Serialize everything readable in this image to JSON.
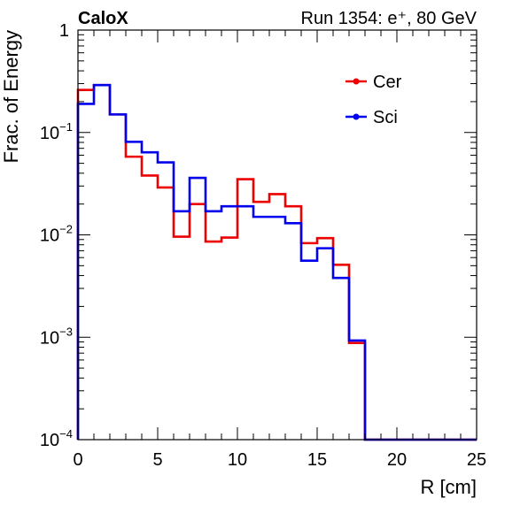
{
  "header": {
    "experiment": "CaloX",
    "run_info": "Run 1354: e⁺, 80 GeV"
  },
  "chart_data": {
    "type": "line",
    "style": "step-histogram",
    "xlabel": "R [cm]",
    "ylabel": "Frac. of Energy",
    "xlim": [
      0,
      25
    ],
    "ylim": [
      0.0001,
      1
    ],
    "yscale": "log",
    "x_ticks": [
      "0",
      "5",
      "10",
      "15",
      "20",
      "25"
    ],
    "y_ticks": [
      {
        "base": "10",
        "exp": "−4",
        "value": 0.0001
      },
      {
        "base": "10",
        "exp": "−3",
        "value": 0.001
      },
      {
        "base": "10",
        "exp": "−2",
        "value": 0.01
      },
      {
        "base": "10",
        "exp": "−1",
        "value": 0.1
      },
      {
        "base": "1",
        "exp": "",
        "value": 1
      }
    ],
    "legend_position": "top-right",
    "bin_edges": [
      0,
      1,
      2,
      3,
      4,
      5,
      6,
      7,
      8,
      9,
      10,
      11,
      12,
      13,
      14,
      15,
      16,
      17,
      18,
      19,
      20,
      21,
      22,
      23,
      24,
      25
    ],
    "series": [
      {
        "name": "Cer",
        "color": "#ee0000",
        "values": [
          0.26,
          0.29,
          0.15,
          0.058,
          0.038,
          0.029,
          0.0096,
          0.02,
          0.0086,
          0.0094,
          0.035,
          0.021,
          0.025,
          0.019,
          0.0083,
          0.0093,
          0.0051,
          0.00088,
          0.0001,
          0.0001,
          0.0001,
          0.0001,
          0.0001,
          0.0001,
          0.0001
        ]
      },
      {
        "name": "Sci",
        "color": "#0000ee",
        "values": [
          0.19,
          0.29,
          0.15,
          0.081,
          0.064,
          0.051,
          0.017,
          0.036,
          0.017,
          0.019,
          0.019,
          0.015,
          0.015,
          0.013,
          0.0056,
          0.0074,
          0.0038,
          0.00093,
          0.0001,
          0.0001,
          0.0001,
          0.0001,
          0.0001,
          0.0001,
          0.0001
        ]
      }
    ]
  }
}
